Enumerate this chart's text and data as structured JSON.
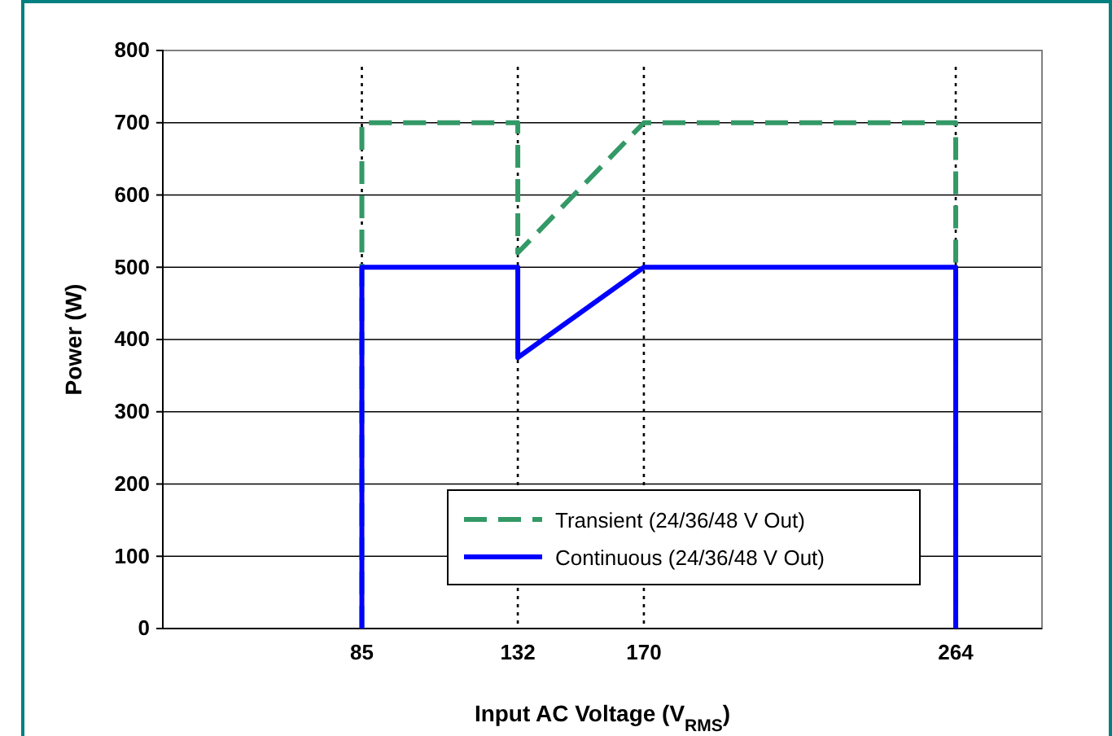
{
  "chart_data": {
    "type": "line",
    "xlabel": "Input AC Voltage (V$_{RMS}$)",
    "ylabel": "Power (W)",
    "xlim": [
      25,
      290
    ],
    "xticks": [
      85,
      132,
      170,
      264
    ],
    "ylim": [
      0,
      800
    ],
    "yticks": [
      0,
      100,
      200,
      300,
      400,
      500,
      600,
      700,
      800
    ],
    "grid": "y",
    "legend": "bottom",
    "marker": "none",
    "series": [
      {
        "name": "Transient (24/36/48 V Out)",
        "color": "#339966",
        "line_style": "dashed",
        "x": [
          85,
          85,
          132,
          132,
          170,
          264,
          264
        ],
        "values": [
          0,
          700,
          700,
          520,
          700,
          700,
          0
        ]
      },
      {
        "name": "Continuous (24/36/48 V Out)",
        "color": "#0000ff",
        "line_style": "solid",
        "x": [
          85,
          85,
          132,
          132,
          170,
          264,
          264
        ],
        "values": [
          0,
          500,
          500,
          375,
          500,
          500,
          0
        ]
      }
    ],
    "ref_lines": [
      {
        "axis": "x",
        "value": 85,
        "color": "#000000",
        "line_style": "dotted"
      },
      {
        "axis": "x",
        "value": 132,
        "color": "#000000",
        "line_style": "dotted"
      },
      {
        "axis": "x",
        "value": 170,
        "color": "#000000",
        "line_style": "dotted"
      },
      {
        "axis": "x",
        "value": 264,
        "color": "#000000",
        "line_style": "dotted"
      }
    ]
  }
}
